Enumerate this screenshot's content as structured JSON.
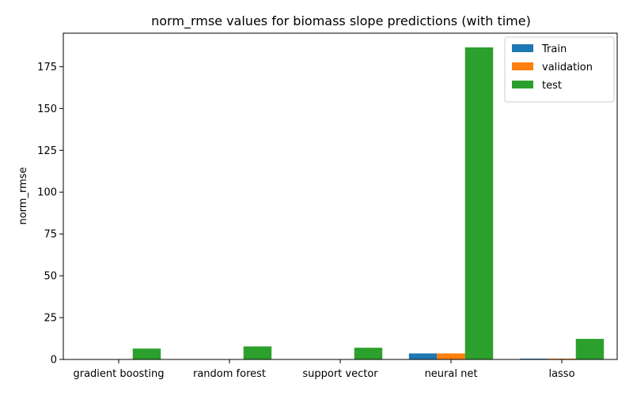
{
  "chart_data": {
    "type": "bar",
    "title": "norm_rmse values for biomass slope predictions (with time)",
    "xlabel": "",
    "ylabel": "norm_rmse",
    "categories": [
      "gradient boosting",
      "random forest",
      "support vector",
      "neural net",
      "lasso"
    ],
    "series": [
      {
        "name": "Train",
        "color": "#1f77b4",
        "values": [
          0.05,
          0.05,
          0.05,
          3.6,
          0.5
        ]
      },
      {
        "name": "validation",
        "color": "#ff7f0e",
        "values": [
          0.05,
          0.05,
          0.05,
          3.6,
          0.5
        ]
      },
      {
        "name": "test",
        "color": "#2ca02c",
        "values": [
          6.5,
          7.8,
          7.0,
          186.5,
          12.3
        ]
      }
    ],
    "ylim": [
      0,
      195
    ],
    "yticks": [
      0,
      25,
      50,
      75,
      100,
      125,
      150,
      175
    ],
    "legend_position": "top-right",
    "grid": false
  }
}
